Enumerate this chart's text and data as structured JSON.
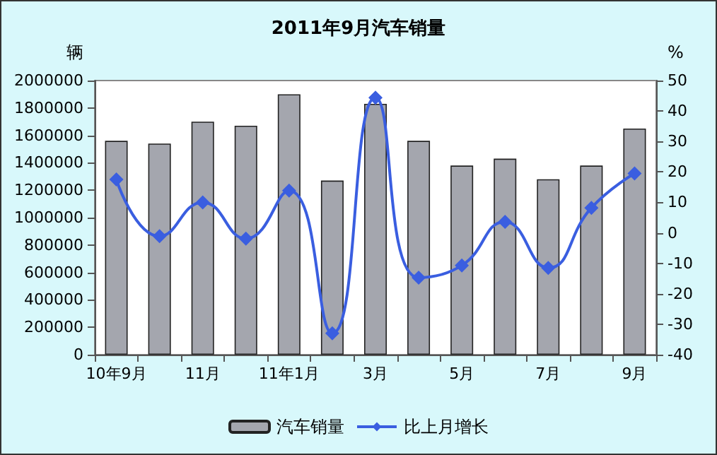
{
  "chart_data": {
    "type": "bar",
    "title": "2011年9月汽车销量",
    "ylabel": "辆",
    "y2label": "%",
    "categories": [
      "10年9月",
      null,
      "11月",
      null,
      "11年1月",
      null,
      "3月",
      null,
      "5月",
      null,
      "7月",
      null,
      "9月"
    ],
    "series": [
      {
        "name": "汽车销量",
        "color": "#a4a6ae",
        "values": [
          1560000,
          1540000,
          1700000,
          1670000,
          1900000,
          1270000,
          1830000,
          1560000,
          1380000,
          1430000,
          1280000,
          1380000,
          1650000
        ]
      },
      {
        "name": "比上月增长",
        "type": "line",
        "axis": "y2",
        "color": "#3a5ee0",
        "marker": "diamond",
        "values": [
          17.5,
          -1.1,
          10,
          -1.9,
          13.9,
          -33,
          44.4,
          -14.7,
          -10.7,
          3.6,
          -11.5,
          8.2,
          19.5
        ]
      }
    ],
    "ylim": [
      0,
      2000000
    ],
    "yticks": [
      0,
      200000,
      400000,
      600000,
      800000,
      1000000,
      1200000,
      1400000,
      1600000,
      1800000,
      2000000
    ],
    "y2lim": [
      -40,
      50
    ],
    "y2ticks": [
      -40,
      -30,
      -20,
      -10,
      0,
      10,
      20,
      30,
      40,
      50
    ],
    "legend": "bottom",
    "grid": false
  }
}
